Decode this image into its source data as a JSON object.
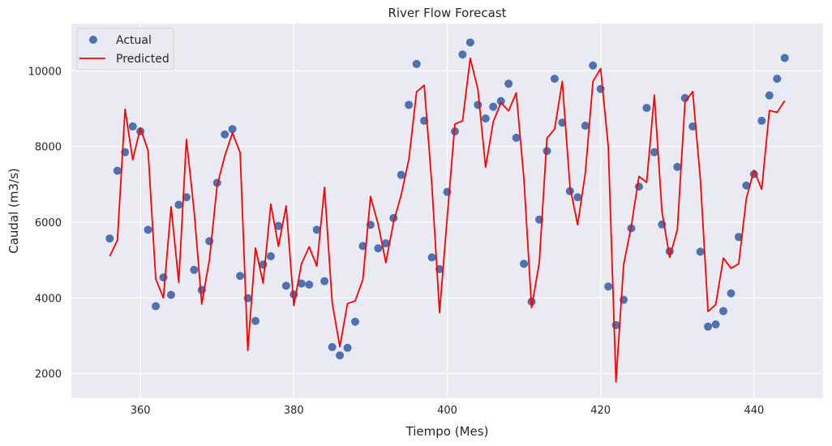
{
  "chart_data": {
    "type": "line",
    "title": "River Flow Forecast",
    "xlabel": "Tiempo (Mes)",
    "ylabel": "Caudal (m3/s)",
    "xlim": [
      351,
      449
    ],
    "ylim": [
      1350,
      11250
    ],
    "xticks": [
      360,
      380,
      400,
      420,
      440
    ],
    "yticks": [
      2000,
      4000,
      6000,
      8000,
      10000
    ],
    "grid": true,
    "legend_position": "top-left",
    "colors": {
      "background": "#eaeaf2",
      "grid": "#ffffff",
      "actual": "#4c72b0",
      "predicted": "#ff0000"
    },
    "x": [
      356,
      357,
      358,
      359,
      360,
      361,
      362,
      363,
      364,
      365,
      366,
      367,
      368,
      369,
      370,
      371,
      372,
      373,
      374,
      375,
      376,
      377,
      378,
      379,
      380,
      381,
      382,
      383,
      384,
      385,
      386,
      387,
      388,
      389,
      390,
      391,
      392,
      393,
      394,
      395,
      396,
      397,
      398,
      399,
      400,
      401,
      402,
      403,
      404,
      405,
      406,
      407,
      408,
      409,
      410,
      411,
      412,
      413,
      414,
      415,
      416,
      417,
      418,
      419,
      420,
      421,
      422,
      423,
      424,
      425,
      426,
      427,
      428,
      429,
      430,
      431,
      432,
      433,
      434,
      435,
      436,
      437,
      438,
      439,
      440,
      441,
      442,
      443,
      444
    ],
    "series": [
      {
        "name": "Actual",
        "style": "scatter",
        "values": [
          5570,
          7360,
          7850,
          8530,
          8400,
          5800,
          3780,
          4540,
          4080,
          6460,
          6660,
          4740,
          4210,
          5500,
          7040,
          8320,
          8460,
          4580,
          3990,
          3390,
          4880,
          5100,
          5900,
          4320,
          4090,
          4380,
          4350,
          5800,
          4440,
          2700,
          2480,
          2680,
          3370,
          5370,
          5930,
          5310,
          5440,
          6110,
          7250,
          9100,
          10180,
          8680,
          5070,
          4760,
          6800,
          8400,
          10430,
          10750,
          9100,
          8740,
          9050,
          9200,
          9660,
          8230,
          4900,
          3900,
          6070,
          7880,
          9790,
          8630,
          6820,
          6660,
          8550,
          10140,
          9520,
          4300,
          3280,
          3950,
          5840,
          6940,
          9020,
          7850,
          5940,
          5230,
          7460,
          9280,
          8530,
          5220,
          3240,
          3300,
          3650,
          4120,
          5610,
          6970,
          7270,
          8680,
          9350,
          9790,
          10340
        ]
      },
      {
        "name": "Predicted",
        "style": "line",
        "values": [
          5100,
          5520,
          8980,
          7650,
          8490,
          7890,
          4500,
          4000,
          6410,
          4410,
          8190,
          6300,
          3840,
          5010,
          6960,
          7750,
          8360,
          7840,
          2610,
          5320,
          4390,
          6480,
          5360,
          6430,
          3800,
          4900,
          5350,
          4840,
          6920,
          3880,
          2710,
          3850,
          3920,
          4480,
          6680,
          5940,
          4930,
          6000,
          6720,
          7660,
          9440,
          9620,
          6980,
          3610,
          6130,
          8590,
          8680,
          10330,
          9510,
          7450,
          8650,
          9160,
          8940,
          9420,
          7140,
          3740,
          4930,
          8220,
          8460,
          9720,
          6940,
          5930,
          7290,
          9720,
          10060,
          7990,
          1780,
          4880,
          5900,
          7210,
          7050,
          9360,
          6270,
          5070,
          5800,
          9180,
          9450,
          7140,
          3640,
          3820,
          5050,
          4780,
          4900,
          6630,
          7370,
          6870,
          8950,
          8900,
          9210
        ]
      }
    ]
  }
}
